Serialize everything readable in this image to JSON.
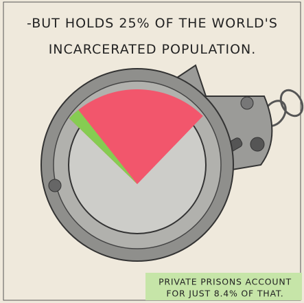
{
  "chart_data": {
    "type": "pie",
    "title_lines": [
      "-BUT HOLDS 25% OF THE WORLD'S",
      "INCARCERATED POPULATION."
    ],
    "annotation_lines": [
      "PRIVATE PRISONS ACCOUNT",
      "FOR JUST 8.4% OF THAT."
    ],
    "share": 25,
    "share_color": "#f2566c",
    "private_share": 8.4,
    "private_color": "#86cc52"
  }
}
